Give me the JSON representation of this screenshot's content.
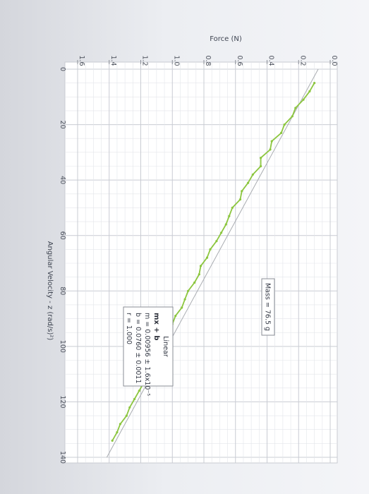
{
  "chart_data": {
    "type": "scatter",
    "title": "",
    "xlabel": "Angular Velocity - z (rad/s)²)",
    "ylabel": "Force (N)",
    "xlim": [
      0,
      140
    ],
    "ylim": [
      0.0,
      1.6
    ],
    "x_ticks": [
      0,
      20,
      40,
      60,
      80,
      100,
      120,
      140
    ],
    "y_ticks": [
      "0.0",
      "0.2",
      "0.4",
      "0.6",
      "0.8",
      "1.0",
      "1.2",
      "1.4",
      "1.6"
    ],
    "grid": true,
    "series": [
      {
        "color": "#8cc63f",
        "x": [
          5,
          8,
          11,
          14,
          17,
          20,
          23,
          26,
          29,
          32,
          35,
          38,
          41,
          44,
          47,
          50,
          53,
          56,
          59,
          62,
          65,
          68,
          71,
          74,
          77,
          80,
          83,
          86,
          89,
          92,
          95,
          98,
          101,
          104,
          107,
          110,
          113,
          116,
          119,
          122,
          125,
          128,
          131,
          134
        ],
        "y": [
          0.1,
          0.13,
          0.17,
          0.22,
          0.24,
          0.29,
          0.31,
          0.37,
          0.38,
          0.44,
          0.44,
          0.49,
          0.52,
          0.56,
          0.57,
          0.62,
          0.64,
          0.66,
          0.69,
          0.72,
          0.76,
          0.78,
          0.82,
          0.83,
          0.86,
          0.9,
          0.92,
          0.94,
          0.98,
          1.0,
          1.02,
          1.05,
          1.08,
          1.11,
          1.12,
          1.16,
          1.18,
          1.21,
          1.24,
          1.27,
          1.29,
          1.33,
          1.35,
          1.38
        ]
      }
    ],
    "fit_line": {
      "color": "#a9acb1",
      "x": [
        0,
        140
      ],
      "y": [
        0.076,
        1.415
      ]
    },
    "annotations": {
      "mass_label": "Mass = 76.5 g",
      "fit_title": "Linear",
      "fit_equation": "mx + b",
      "fit_m": "m = 0.00956 ± 1.6x10⁻⁵",
      "fit_b": "b = 0.0760 ± 0.0011",
      "fit_r": "r = 1.000"
    }
  }
}
